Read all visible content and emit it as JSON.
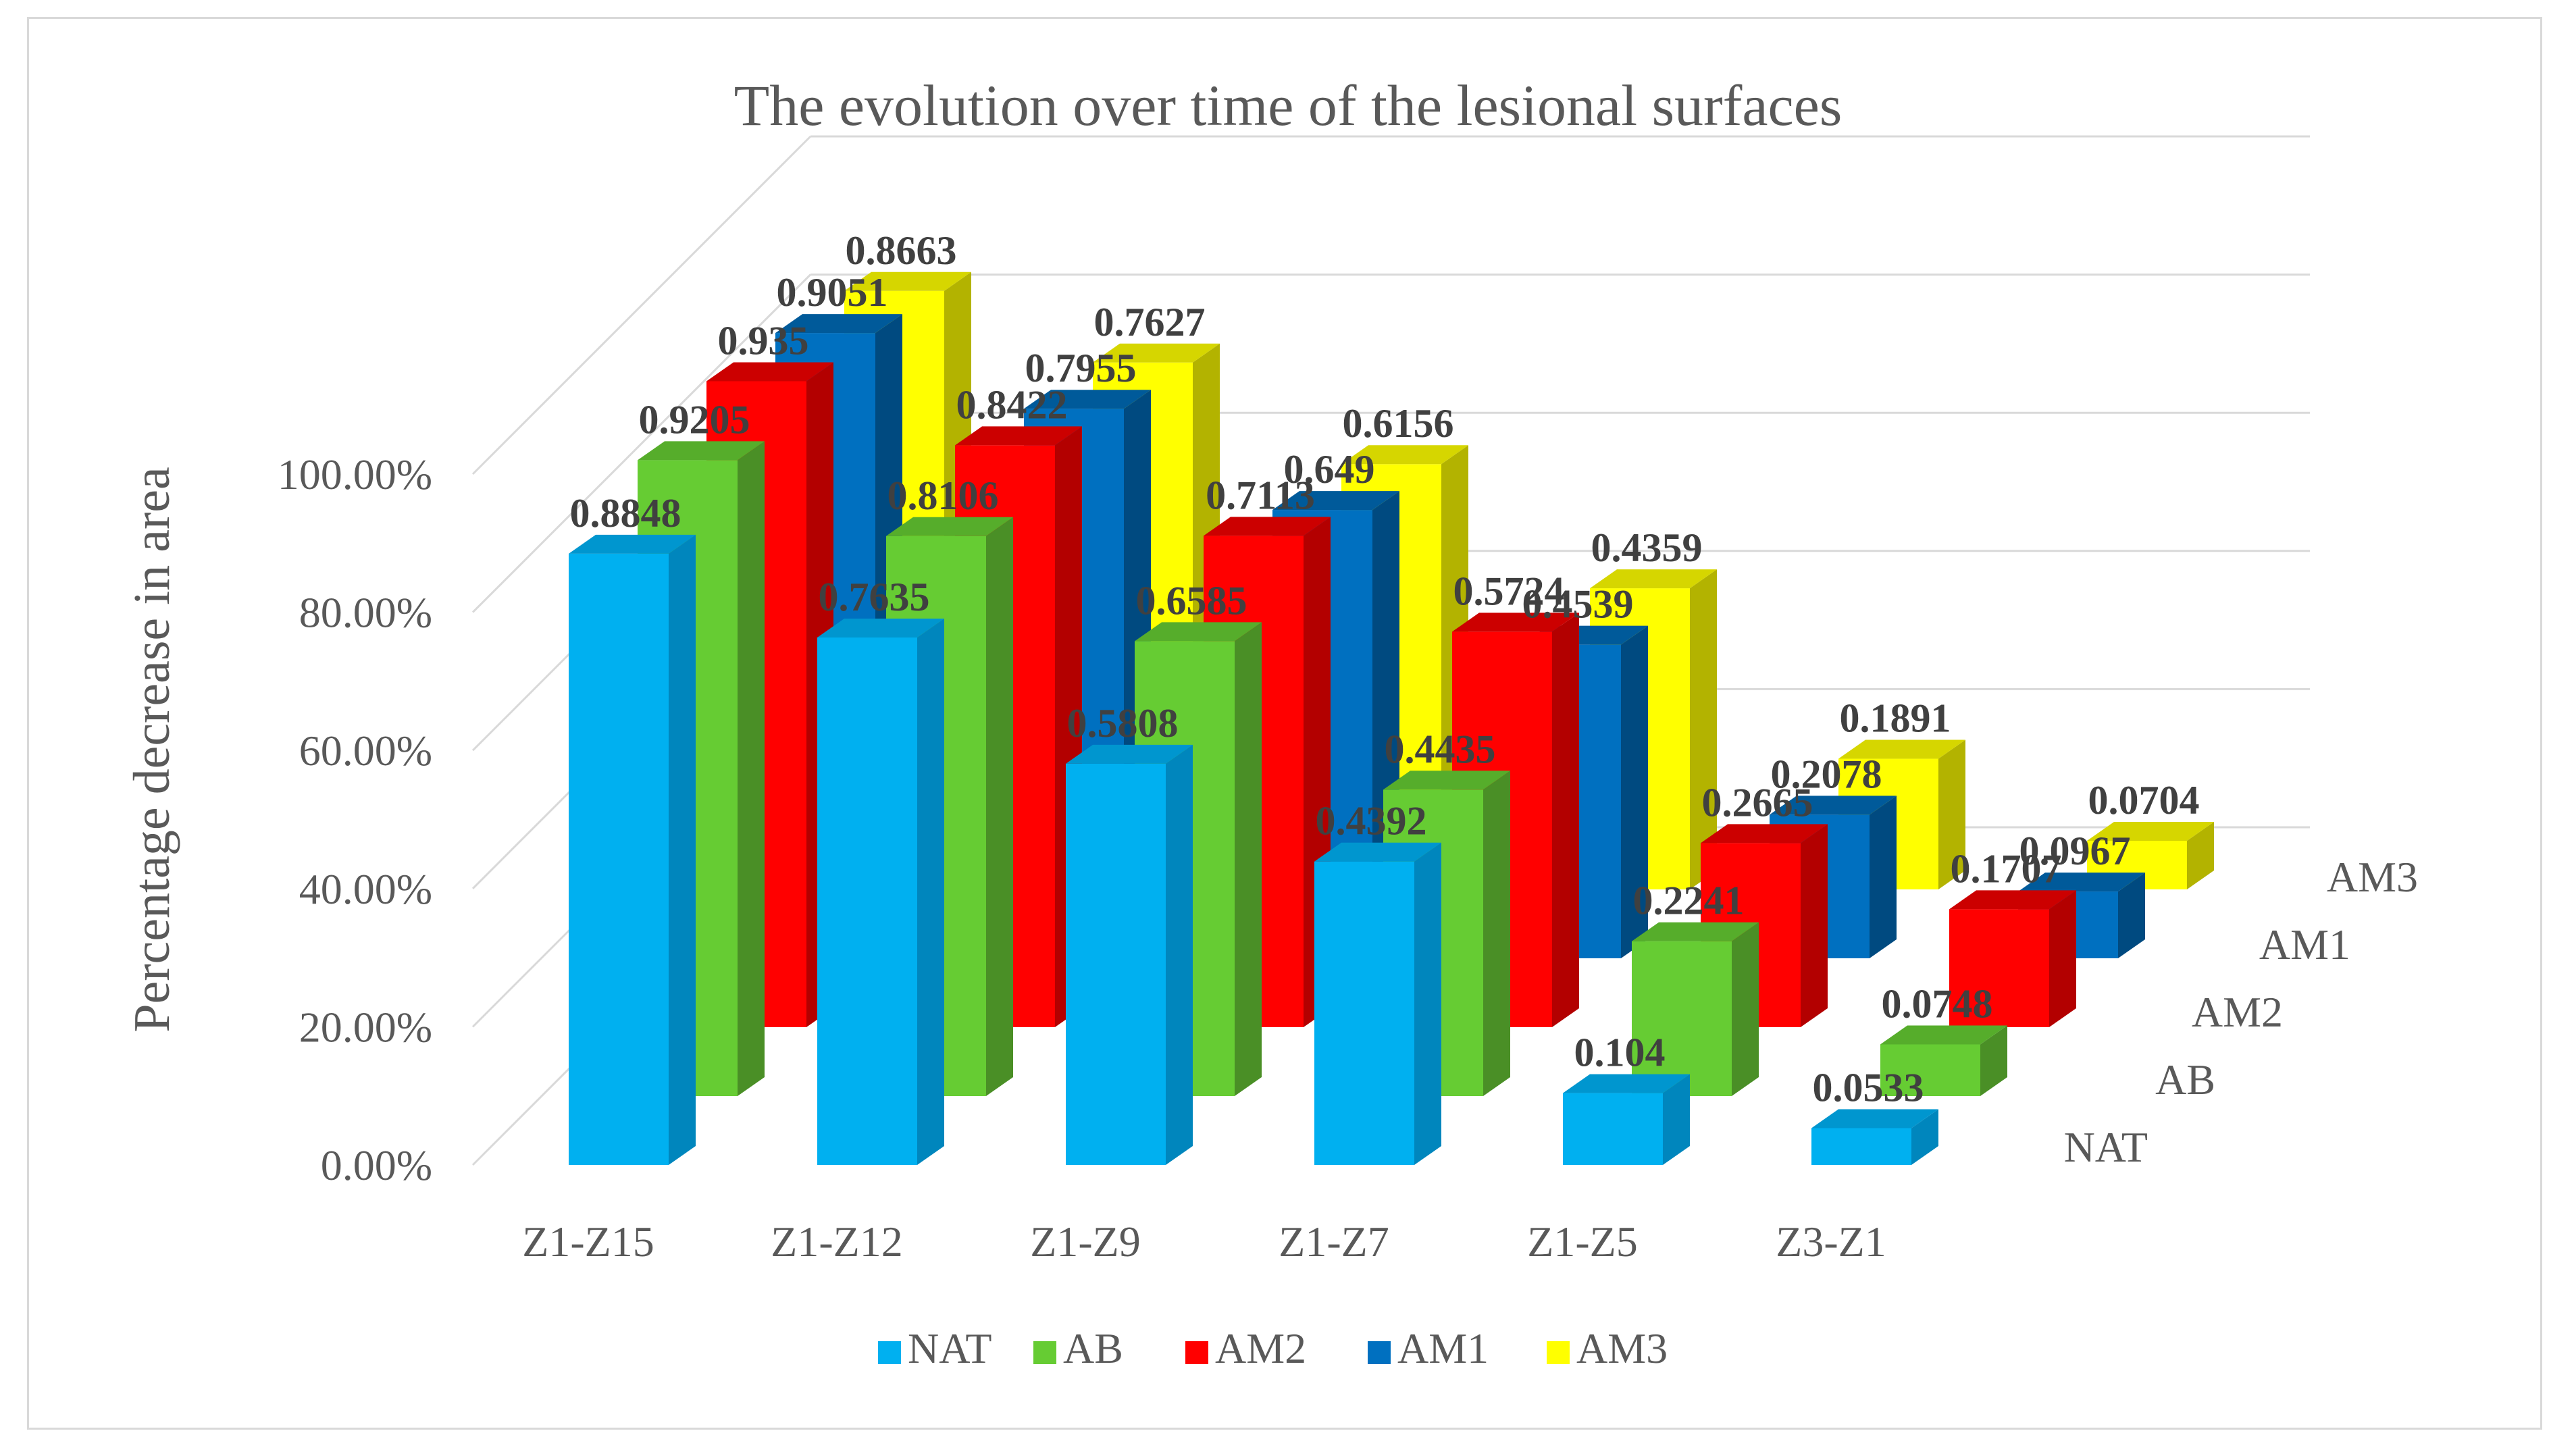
{
  "chart_data": {
    "type": "bar",
    "subtype": "3d-column",
    "title": "The evolution over time of the lesional surfaces",
    "ylabel": "Percentage decrease in area",
    "xlabel": "",
    "ylim": [
      0,
      1
    ],
    "y_ticks": [
      {
        "value": 0,
        "label": "0.00%"
      },
      {
        "value": 0.2,
        "label": "20.00%"
      },
      {
        "value": 0.4,
        "label": "40.00%"
      },
      {
        "value": 0.6,
        "label": "60.00%"
      },
      {
        "value": 0.8,
        "label": "80.00%"
      },
      {
        "value": 1.0,
        "label": "100.00%"
      }
    ],
    "categories": [
      "Z1-Z15",
      "Z1-Z12",
      "Z1-Z9",
      "Z1-Z7",
      "Z1-Z5",
      "Z3-Z1"
    ],
    "series": [
      {
        "name": "NAT",
        "color": "#00b0f0",
        "side": "#0086bd",
        "top": "#0096cf",
        "values": [
          0.8848,
          0.7635,
          0.5808,
          0.4392,
          0.104,
          0.0533
        ],
        "labels": [
          "0.8848",
          "0.7635",
          "0.5808",
          "0.4392",
          "0.104",
          "0.0533"
        ]
      },
      {
        "name": "AB",
        "color": "#66cc33",
        "side": "#4a8f26",
        "top": "#56ad2b",
        "values": [
          0.9205,
          0.8106,
          0.6585,
          0.4435,
          0.2241,
          0.0748
        ],
        "labels": [
          "0.9205",
          "0.8106",
          "0.6585",
          "0.4435",
          "0.2241",
          "0.0748"
        ]
      },
      {
        "name": "AM2",
        "color": "#ff0000",
        "side": "#b30000",
        "top": "#cc0000",
        "values": [
          0.935,
          0.8422,
          0.7113,
          0.5724,
          0.2665,
          0.1707
        ],
        "labels": [
          "0.935",
          "0.8422",
          "0.7113",
          "0.5724",
          "0.2665",
          "0.1707"
        ]
      },
      {
        "name": "AM1",
        "color": "#0070c0",
        "side": "#004a80",
        "top": "#005a9a",
        "values": [
          0.9051,
          0.7955,
          0.649,
          0.4539,
          0.2078,
          0.0967
        ],
        "labels": [
          "0.9051",
          "0.7955",
          "0.649",
          "0.4539",
          "0.2078",
          "0.0967"
        ]
      },
      {
        "name": "AM3",
        "color": "#ffff00",
        "side": "#b3b300",
        "top": "#d6d600",
        "values": [
          0.8663,
          0.7627,
          0.6156,
          0.4359,
          0.1891,
          0.0704
        ],
        "labels": [
          "0.8663",
          "0.7627",
          "0.6156",
          "0.4359",
          "0.1891",
          "0.0704"
        ]
      }
    ],
    "depth_labels": [
      "NAT",
      "AB",
      "AM2",
      "AM1",
      "AM3"
    ],
    "legend": {
      "position": "bottom",
      "entries": [
        "NAT",
        "AB",
        "AM2",
        "AM1",
        "AM3"
      ]
    },
    "grid": true,
    "colors": {
      "text": "#595959",
      "data_label": "#404040",
      "gridline": "#d9d9d9",
      "border": "#d9d9d9"
    }
  }
}
